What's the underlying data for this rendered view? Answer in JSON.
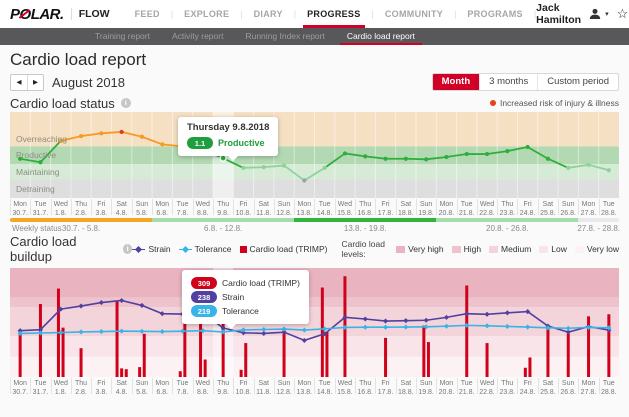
{
  "colors": {
    "brand_red": "#d10027",
    "risk_red": "#e8401c",
    "trimp_red": "#d0021b",
    "strain_purple": "#5140a0",
    "tolerance_blue": "#39b4e6",
    "status_green": "#1e9e3e"
  },
  "header": {
    "brand_parts": [
      "P",
      "O",
      "LAR."
    ],
    "product": "FLOW",
    "nav": [
      "FEED",
      "EXPLORE",
      "DIARY",
      "PROGRESS",
      "COMMUNITY",
      "PROGRAMS"
    ],
    "active_nav": "PROGRESS",
    "user_name": "Jack Hamilton"
  },
  "subnav": {
    "tabs": [
      "Training report",
      "Activity report",
      "Running Index report",
      "Cardio load report"
    ],
    "active_tab": "Cardio load report"
  },
  "page": {
    "title": "Cardio load report",
    "period_label": "August 2018",
    "period_options": [
      "Month",
      "3 months",
      "Custom period"
    ],
    "active_period": "Month"
  },
  "status_section": {
    "title": "Cardio load status",
    "risk_label": "Increased risk of injury & illness"
  },
  "buildup_section": {
    "title": "Cardio load buildup",
    "levels_label": "Cardio load levels:",
    "legend": [
      {
        "label": "Strain",
        "marker": "diamond",
        "color": "#5140a0"
      },
      {
        "label": "Tolerance",
        "marker": "diamond",
        "color": "#39b4e6"
      },
      {
        "label": "Cardio load (TRIMP)",
        "marker": "square",
        "color": "#d0021b"
      }
    ]
  },
  "chart_data": [
    {
      "type": "line",
      "title": "Cardio load status",
      "x_categories": [
        {
          "d": "Mon",
          "n": "30.7."
        },
        {
          "d": "Tue",
          "n": "31.7."
        },
        {
          "d": "Wed",
          "n": "1.8."
        },
        {
          "d": "Thu",
          "n": "2.8."
        },
        {
          "d": "Fri",
          "n": "3.8."
        },
        {
          "d": "Sat",
          "n": "4.8."
        },
        {
          "d": "Sun",
          "n": "5.8."
        },
        {
          "d": "Mon",
          "n": "6.8."
        },
        {
          "d": "Tue",
          "n": "7.8."
        },
        {
          "d": "Wed",
          "n": "8.8."
        },
        {
          "d": "Thu",
          "n": "9.8."
        },
        {
          "d": "Fri",
          "n": "10.8."
        },
        {
          "d": "Sat",
          "n": "11.8."
        },
        {
          "d": "Sun",
          "n": "12.8."
        },
        {
          "d": "Mon",
          "n": "13.8."
        },
        {
          "d": "Tue",
          "n": "14.8."
        },
        {
          "d": "Wed",
          "n": "15.8."
        },
        {
          "d": "Thu",
          "n": "16.8."
        },
        {
          "d": "Fri",
          "n": "17.8."
        },
        {
          "d": "Sat",
          "n": "18.8."
        },
        {
          "d": "Sun",
          "n": "19.8."
        },
        {
          "d": "Mon",
          "n": "20.8."
        },
        {
          "d": "Tue",
          "n": "21.8."
        },
        {
          "d": "Wed",
          "n": "22.8."
        },
        {
          "d": "Thu",
          "n": "23.8."
        },
        {
          "d": "Fri",
          "n": "24.8."
        },
        {
          "d": "Sat",
          "n": "25.8."
        },
        {
          "d": "Sun",
          "n": "26.8."
        },
        {
          "d": "Mon",
          "n": "27.8."
        },
        {
          "d": "Tue",
          "n": "28.8."
        }
      ],
      "values": [
        1.09,
        1.03,
        1.38,
        1.45,
        1.49,
        1.51,
        1.44,
        1.33,
        1.3,
        1.24,
        1.1,
        0.95,
        0.96,
        0.98,
        0.79,
        0.95,
        1.18,
        1.13,
        1.09,
        1.09,
        1.08,
        1.12,
        1.17,
        1.17,
        1.22,
        1.29,
        1.09,
        0.95,
        0.99,
        0.92
      ],
      "zones": [
        {
          "name": "Overreaching",
          "color": "#f6e0c4",
          "height_frac": 0.4
        },
        {
          "name": "Productive",
          "color": "#b3d9b3",
          "height_frac": 0.205
        },
        {
          "name": "Maintaining",
          "color": "#d6ebd6",
          "height_frac": 0.18
        },
        {
          "name": "Detraining",
          "color": "#dedede",
          "height_frac": 0.215
        }
      ],
      "point_colors": {
        "peak": "#e5332a",
        "overreaching": "#f59b23",
        "productive": "#2fae3e",
        "maintaining": "#8fd39b",
        "detraining": "#9e9e9e"
      },
      "highlight_index": 10,
      "selected_point": {
        "date": "Thursday 9.8.2018",
        "value": "1.1",
        "status": "Productive"
      },
      "weekly_status": {
        "label": "Weekly status",
        "segments": [
          {
            "label": "30.7. - 5.8.",
            "days": 7,
            "color": "#f5a623"
          },
          {
            "label": "6.8. - 12.8.",
            "days": 7,
            "color": "#a6dcab"
          },
          {
            "label": "13.8. - 19.8.",
            "days": 7,
            "color": "#2fb53b"
          },
          {
            "label": "20.8. - 26.8.",
            "days": 7,
            "color": "#a6dcab"
          },
          {
            "label": "27.8. - 28.8.",
            "days": 2,
            "color": "#e9e9e9"
          }
        ]
      }
    },
    {
      "type": "bar",
      "title": "Cardio load buildup",
      "ylim": [
        0,
        530
      ],
      "x_categories": [
        {
          "d": "Mon",
          "n": "30.7."
        },
        {
          "d": "Tue",
          "n": "31.7."
        },
        {
          "d": "Wed",
          "n": "1.8."
        },
        {
          "d": "Thu",
          "n": "2.8."
        },
        {
          "d": "Fri",
          "n": "3.8."
        },
        {
          "d": "Sat",
          "n": "4.8."
        },
        {
          "d": "Sun",
          "n": "5.8."
        },
        {
          "d": "Mon",
          "n": "6.8."
        },
        {
          "d": "Tue",
          "n": "7.8."
        },
        {
          "d": "Wed",
          "n": "8.8."
        },
        {
          "d": "Thu",
          "n": "9.8."
        },
        {
          "d": "Fri",
          "n": "10.8."
        },
        {
          "d": "Sat",
          "n": "11.8."
        },
        {
          "d": "Sun",
          "n": "12.8."
        },
        {
          "d": "Mon",
          "n": "13.8."
        },
        {
          "d": "Tue",
          "n": "14.8."
        },
        {
          "d": "Wed",
          "n": "15.8."
        },
        {
          "d": "Thu",
          "n": "16.8."
        },
        {
          "d": "Fri",
          "n": "17.8."
        },
        {
          "d": "Sat",
          "n": "18.8."
        },
        {
          "d": "Sun",
          "n": "19.8."
        },
        {
          "d": "Mon",
          "n": "20.8."
        },
        {
          "d": "Tue",
          "n": "21.8."
        },
        {
          "d": "Wed",
          "n": "22.8."
        },
        {
          "d": "Thu",
          "n": "23.8."
        },
        {
          "d": "Fri",
          "n": "24.8."
        },
        {
          "d": "Sat",
          "n": "25.8."
        },
        {
          "d": "Sun",
          "n": "26.8."
        },
        {
          "d": "Mon",
          "n": "27.8."
        },
        {
          "d": "Tue",
          "n": "28.8."
        }
      ],
      "series": [
        {
          "name": "Cardio load (TRIMP)",
          "type": "bar",
          "color": "#d0021b",
          "sessions_per_day": [
            [
              230
            ],
            [
              355
            ],
            [
              430,
              240
            ],
            [
              140
            ],
            [],
            [
              370,
              42,
              38
            ],
            [
              48,
              210
            ],
            [],
            [
              28,
              320
            ],
            [
              318,
              85
            ],
            [
              309
            ],
            [
              35,
              165
            ],
            [],
            [
              230
            ],
            [],
            [
              435,
              220
            ],
            [
              490
            ],
            [],
            [
              190
            ],
            [],
            [
              250,
              170
            ],
            [],
            [
              445
            ],
            [
              165
            ],
            [],
            [
              45,
              95
            ],
            [
              235
            ],
            [
              210
            ],
            [
              295
            ],
            [
              305
            ]
          ]
        },
        {
          "name": "Strain",
          "type": "line",
          "color": "#5140a0",
          "values": [
            225,
            230,
            330,
            345,
            362,
            372,
            348,
            308,
            306,
            312,
            238,
            215,
            212,
            218,
            178,
            210,
            290,
            282,
            272,
            274,
            276,
            290,
            308,
            305,
            312,
            318,
            248,
            218,
            245,
            228
          ]
        },
        {
          "name": "Tolerance",
          "type": "line",
          "color": "#39b4e6",
          "values": [
            212,
            214,
            216,
            219,
            221,
            223,
            222,
            221,
            223,
            225,
            219,
            229,
            231,
            233,
            228,
            234,
            241,
            242,
            242,
            243,
            244,
            247,
            251,
            249,
            246,
            243,
            239,
            237,
            241,
            239
          ]
        }
      ],
      "levels": [
        {
          "name": "Very high",
          "color": "#e9b3c0",
          "height_frac": 0.27
        },
        {
          "name": "High",
          "color": "#eec3cd",
          "height_frac": 0.09
        },
        {
          "name": "Medium",
          "color": "#f3d4db",
          "height_frac": 0.265
        },
        {
          "name": "Low",
          "color": "#f8e4e9",
          "height_frac": 0.19
        },
        {
          "name": "Very low",
          "color": "#fcf2f4",
          "height_frac": 0.185
        }
      ],
      "highlight_index": 10,
      "selected_point": {
        "trimp": "309",
        "strain": "238",
        "tolerance": "219"
      }
    }
  ]
}
